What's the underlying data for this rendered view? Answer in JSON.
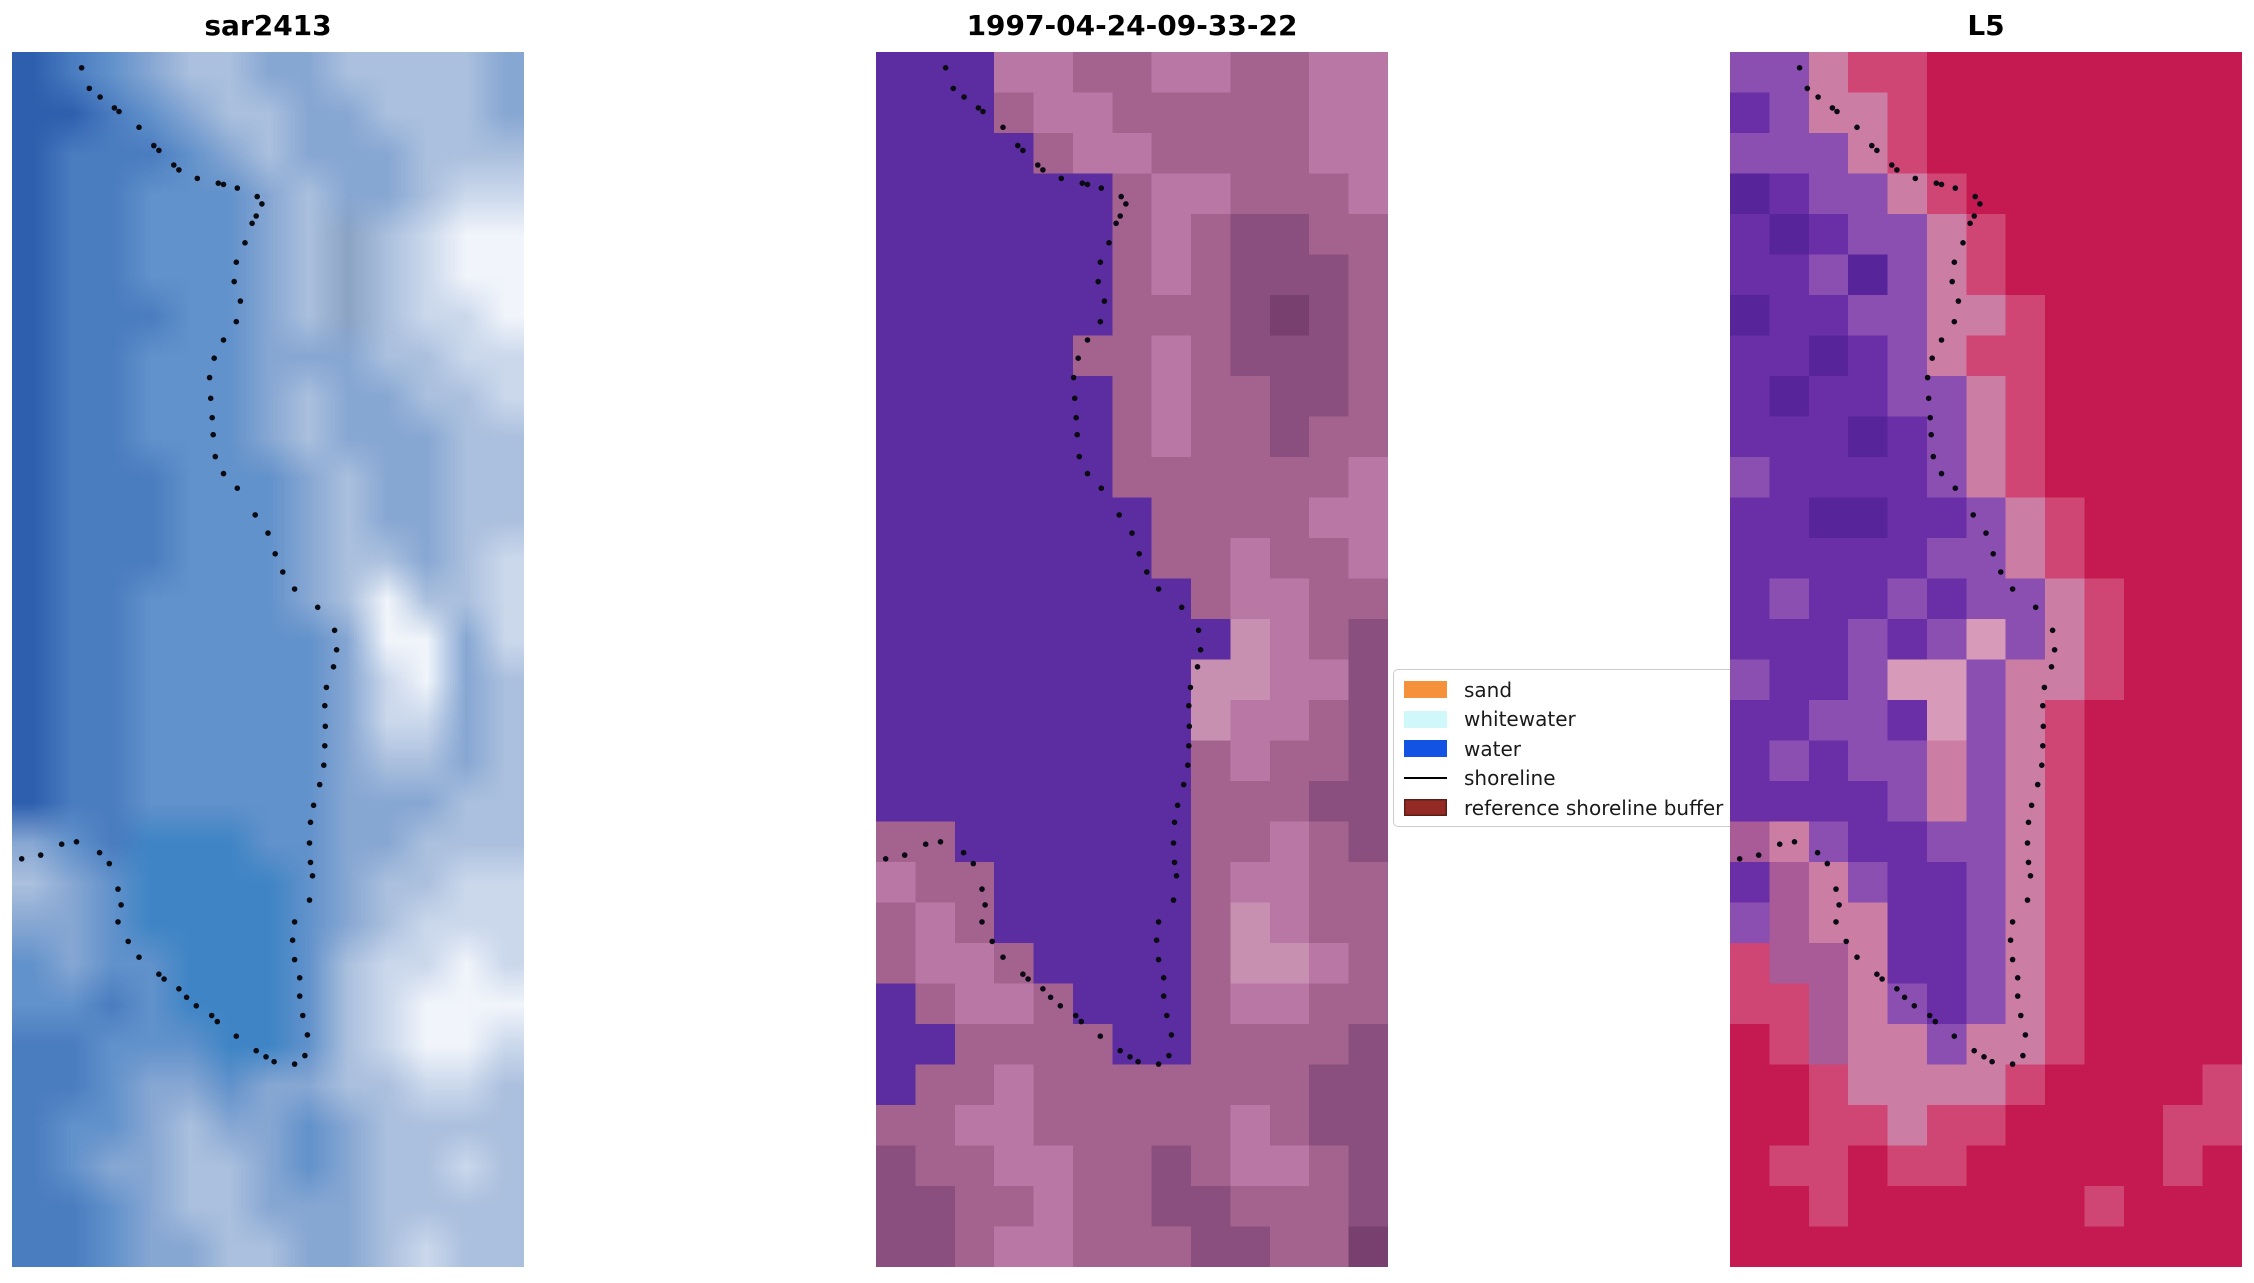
{
  "chart_data": [
    {
      "type": "heatmap",
      "kind": "satellite-image-panel",
      "title": "sar2413",
      "render": "smooth",
      "grid_size": {
        "cols": 13,
        "rows": 30
      },
      "palette": {
        "a": "#2e5fae",
        "b": "#4a7cc0",
        "c": "#6292cb",
        "d": "#87a7d3",
        "e": "#abc0de",
        "f": "#cbd8ec",
        "g": "#f1f5fb",
        "h": "#3f85c6",
        "i": "#8ba3c4"
      },
      "grid": [
        "abcdeeddeeeed",
        "aabcdeeddeeed",
        "abbbcdedddeee",
        "abbcccdeddeff",
        "abbcccdeiefgg",
        "abbcccdeiefgg",
        "abbbccdeieffg",
        "abbcccdddeeff",
        "abbcccdeddeef",
        "abbcccdedddee",
        "abbbcccdeddee",
        "abbbcccdeddee",
        "abbbcccdeedef",
        "abbccccdegeef",
        "abbcccccdggdf",
        "abbcccccdfgde",
        "abbcccccdffde",
        "abbcccccdeede",
        "abbcccccdddee",
        "dcbhhhccddeee",
        "edchhhhcdeeff",
        "ddchhhhcdefff",
        "cdcchhhceffgf",
        "ccbchhhcefggg",
        "bbccchhcefggf",
        "bbcddcddeeffe",
        "bccdeddcdeeee",
        "bcddeedcdeefe",
        "bbcdeedddeeee",
        "bbcddeeddefee"
      ]
    },
    {
      "type": "heatmap",
      "kind": "classified-image-panel",
      "title": "1997-04-24-09-33-22",
      "render": "pixelated",
      "grid_size": {
        "cols": 13,
        "rows": 30
      },
      "palette": {
        "W": "#5b2da0",
        "K": "#a4638f",
        "L": "#b877a4",
        "M": "#8a4f7e",
        "N": "#c890b0",
        "O": "#77406e"
      },
      "grid": [
        "WWWLLKKLLKKLL",
        "WWWKLLKKKKKLL",
        "WWWWKLLKKKKLL",
        "WWWWWWKLLKKKL",
        "WWWWWWKLKMMKK",
        "WWWWWWKLKMMMK",
        "WWWWWWKKKMOMK",
        "WWWWWKKLKMMMK",
        "WWWWWWKLKKMMK",
        "WWWWWWKLKKMKK",
        "WWWWWWKKKKKKL",
        "WWWWWWWKKKKLL",
        "WWWWWWWKKLKKL",
        "WWWWWWWWKLLKK",
        "WWWWWWWWWNLKM",
        "WWWWWWWWNNLLM",
        "WWWWWWWWNLLKM",
        "WWWWWWWWKLKKM",
        "WWWWWWWWKKKMM",
        "KKWWWWWWKKLKM",
        "LKKWWWWWKLLKK",
        "KLKWWWWWKNLKK",
        "KLLKWWWWKNNLK",
        "WKLLKWWWKLLKK",
        "WWKKKKWWKKKKM",
        "WKKLKKKKKKKMM",
        "KKLLKKKKKLKMM",
        "MKKLLKKMKLLKM",
        "MMKKLKKMMKKKM",
        "MMKLLKKKMMKKO"
      ]
    },
    {
      "type": "heatmap",
      "kind": "satellite-image-panel",
      "title": "L5",
      "render": "pixelated",
      "grid_size": {
        "cols": 13,
        "rows": 30
      },
      "palette": {
        "R": "#c41a51",
        "S": "#cf4573",
        "T": "#cc7da3",
        "U": "#d89ab9",
        "P": "#6a2fa6",
        "Q": "#8a4fb0",
        "V": "#57249a",
        "X": "#a85b97"
      },
      "grid": [
        "QQTSSRRRRRRRR",
        "PQTTSRRRRRRRR",
        "QQQTSRRRRRRRR",
        "VPQQTSRRRRRRR",
        "PVPQQTSRRRRRR",
        "PPQVQTSRRRRRR",
        "VPPQQTTSRRRRR",
        "PPVPQTSSRRRRR",
        "PVPPQQTSRRRRR",
        "PPPVPQTSRRRRR",
        "QPPPPQTSRRRRR",
        "PPVVPPQTSRRRR",
        "PPPPPQQTSRRRR",
        "PQPPQPQQTSRRR",
        "PPPQPQUQTSRRR",
        "QPPQUUQTTSRRR",
        "PPQQPUQTSRRRR",
        "PQPQQTQTSRRRR",
        "PPPPQTQTSRRRR",
        "XTQPPQQTSRRRR",
        "PXTQPPQTSRRRR",
        "QXTTPPQTSRRRR",
        "SXXTPPQTSRRRR",
        "SSXTQPQTSRRRR",
        "RSXTTQTTSRRRR",
        "RRSTTTTSRRRRS",
        "RRSSTSSRRRRSS",
        "RSSRSSRRRRRSR",
        "RRSRRRRRRSRRR",
        "RRRRRRRRRRRRR"
      ]
    }
  ],
  "shoreline": {
    "color": "#0b0b14",
    "dot_radius": 2.8,
    "points": [
      [
        0.019,
        0.664
      ],
      [
        0.056,
        0.661
      ],
      [
        0.097,
        0.652
      ],
      [
        0.126,
        0.65
      ],
      [
        0.171,
        0.659
      ],
      [
        0.19,
        0.668
      ],
      [
        0.207,
        0.689
      ],
      [
        0.213,
        0.702
      ],
      [
        0.207,
        0.716
      ],
      [
        0.227,
        0.732
      ],
      [
        0.248,
        0.745
      ],
      [
        0.287,
        0.759
      ],
      [
        0.297,
        0.763
      ],
      [
        0.326,
        0.771
      ],
      [
        0.341,
        0.778
      ],
      [
        0.36,
        0.785
      ],
      [
        0.39,
        0.793
      ],
      [
        0.401,
        0.798
      ],
      [
        0.438,
        0.81
      ],
      [
        0.477,
        0.822
      ],
      [
        0.496,
        0.827
      ],
      [
        0.512,
        0.831
      ],
      [
        0.552,
        0.833
      ],
      [
        0.572,
        0.826
      ],
      [
        0.577,
        0.809
      ],
      [
        0.568,
        0.793
      ],
      [
        0.562,
        0.777
      ],
      [
        0.562,
        0.762
      ],
      [
        0.552,
        0.747
      ],
      [
        0.548,
        0.731
      ],
      [
        0.552,
        0.716
      ],
      [
        0.581,
        0.698
      ],
      [
        0.587,
        0.678
      ],
      [
        0.583,
        0.667
      ],
      [
        0.581,
        0.651
      ],
      [
        0.583,
        0.634
      ],
      [
        0.589,
        0.62
      ],
      [
        0.601,
        0.603
      ],
      [
        0.609,
        0.587
      ],
      [
        0.611,
        0.571
      ],
      [
        0.612,
        0.555
      ],
      [
        0.611,
        0.538
      ],
      [
        0.614,
        0.523
      ],
      [
        0.628,
        0.506
      ],
      [
        0.634,
        0.492
      ],
      [
        0.63,
        0.476
      ],
      [
        0.597,
        0.457
      ],
      [
        0.552,
        0.442
      ],
      [
        0.529,
        0.428
      ],
      [
        0.514,
        0.413
      ],
      [
        0.5,
        0.396
      ],
      [
        0.475,
        0.381
      ],
      [
        0.44,
        0.359
      ],
      [
        0.413,
        0.347
      ],
      [
        0.397,
        0.333
      ],
      [
        0.393,
        0.315
      ],
      [
        0.391,
        0.301
      ],
      [
        0.388,
        0.285
      ],
      [
        0.386,
        0.268
      ],
      [
        0.395,
        0.252
      ],
      [
        0.413,
        0.237
      ],
      [
        0.438,
        0.222
      ],
      [
        0.446,
        0.205
      ],
      [
        0.434,
        0.189
      ],
      [
        0.438,
        0.173
      ],
      [
        0.455,
        0.157
      ],
      [
        0.469,
        0.141
      ],
      [
        0.477,
        0.135
      ],
      [
        0.488,
        0.125
      ],
      [
        0.479,
        0.119
      ],
      [
        0.44,
        0.112
      ],
      [
        0.413,
        0.109
      ],
      [
        0.403,
        0.108
      ],
      [
        0.362,
        0.104
      ],
      [
        0.326,
        0.097
      ],
      [
        0.316,
        0.093
      ],
      [
        0.287,
        0.081
      ],
      [
        0.277,
        0.077
      ],
      [
        0.248,
        0.062
      ],
      [
        0.209,
        0.049
      ],
      [
        0.2,
        0.046
      ],
      [
        0.172,
        0.037
      ],
      [
        0.151,
        0.03
      ],
      [
        0.136,
        0.013
      ]
    ]
  },
  "legend": {
    "background": "#ffffff",
    "border_color": "#cccccc",
    "entries": [
      {
        "label": "sand",
        "swatch": "rect",
        "color": "#f5913b"
      },
      {
        "label": "whitewater",
        "swatch": "rect",
        "color": "#d0f8fa"
      },
      {
        "label": "water",
        "swatch": "rect",
        "color": "#1253e4"
      },
      {
        "label": "shoreline",
        "swatch": "line",
        "color": "#000000"
      },
      {
        "label": "reference shoreline buffer",
        "swatch": "rect",
        "color": "#932b24",
        "edge_color": "#5f1d17"
      }
    ]
  }
}
